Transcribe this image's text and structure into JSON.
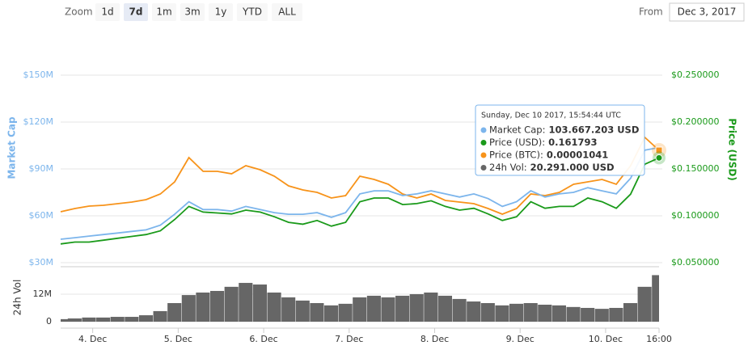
{
  "chart_data": {
    "type": "line",
    "toolbar": {
      "zoom_label": "Zoom",
      "buttons": [
        "1d",
        "7d",
        "1m",
        "3m",
        "1y",
        "YTD",
        "ALL"
      ],
      "selected": 1,
      "from_label": "From",
      "from_value": "Dec 3, 2017"
    },
    "ylabel": "Market Cap",
    "y2label": "Price (USD)",
    "vol_label": "24h Vol",
    "x": [
      0,
      4,
      8,
      12,
      16,
      20,
      24,
      28,
      32,
      36,
      40,
      44,
      48,
      52,
      56,
      60,
      64,
      68,
      72,
      76,
      80,
      84,
      88,
      92,
      96,
      100,
      104,
      108,
      112,
      116,
      120,
      124,
      128,
      132,
      136,
      140,
      144,
      148,
      152,
      156,
      160,
      164,
      168
    ],
    "xlim": [
      0,
      168
    ],
    "xticks": [
      {
        "value": 9,
        "label": "4. Dec"
      },
      {
        "value": 33,
        "label": "5. Dec"
      },
      {
        "value": 57,
        "label": "6. Dec"
      },
      {
        "value": 81,
        "label": "7. Dec"
      },
      {
        "value": 105,
        "label": "8. Dec"
      },
      {
        "value": 129,
        "label": "9. Dec"
      },
      {
        "value": 153,
        "label": "10. Dec"
      },
      {
        "value": 168,
        "label": "16:00"
      }
    ],
    "ylim": [
      30,
      177.4
    ],
    "yticks": [
      {
        "value": 30,
        "label": "$30M"
      },
      {
        "value": 60,
        "label": "$60M"
      },
      {
        "value": 90,
        "label": "$90M"
      },
      {
        "value": 120,
        "label": "$120M"
      },
      {
        "value": 150,
        "label": "$150M"
      }
    ],
    "y2lim": [
      0.05,
      0.2957
    ],
    "y2ticks": [
      {
        "value": 0.05,
        "label": "$0.050000"
      },
      {
        "value": 0.1,
        "label": "$0.100000"
      },
      {
        "value": 0.15,
        "label": "$0.150000"
      },
      {
        "value": 0.2,
        "label": "$0.200000"
      },
      {
        "value": 0.25,
        "label": "$0.250000"
      }
    ],
    "y3lim": [
      6.24e-06,
      1.479e-05
    ],
    "vol_ylim": [
      0,
      22.2
    ],
    "vol_yticks": [
      0,
      {
        "value": 12,
        "label": "12M"
      }
    ],
    "series": [
      {
        "color": "#7cb5ec",
        "axis": "y",
        "values": [
          45,
          46,
          47,
          48,
          49,
          50,
          51,
          54,
          61,
          69,
          64,
          64,
          63,
          66,
          64,
          62,
          61,
          61,
          62,
          59,
          62,
          74,
          76,
          76,
          73,
          74,
          76,
          74,
          72,
          74,
          71,
          66,
          69,
          76,
          72,
          74,
          75,
          78,
          76,
          74,
          84,
          102,
          103.67
        ]
      },
      {
        "color": "#1a9a1a",
        "axis": "y2",
        "values": [
          0.07,
          0.072,
          0.072,
          0.074,
          0.076,
          0.078,
          0.08,
          0.084,
          0.096,
          0.11,
          0.104,
          0.103,
          0.102,
          0.106,
          0.104,
          0.099,
          0.093,
          0.091,
          0.095,
          0.089,
          0.093,
          0.115,
          0.119,
          0.119,
          0.112,
          0.113,
          0.116,
          0.11,
          0.106,
          0.108,
          0.102,
          0.095,
          0.099,
          0.115,
          0.108,
          0.11,
          0.11,
          0.119,
          0.115,
          0.108,
          0.123,
          0.155,
          0.161793
        ]
      },
      {
        "color": "#f7931a",
        "axis": "y3",
        "values": [
          8.13e-06,
          8.25e-06,
          8.34e-06,
          8.37e-06,
          8.43e-06,
          8.49e-06,
          8.58e-06,
          8.79e-06,
          9.24e-06,
          1.014e-05,
          9.63e-06,
          9.63e-06,
          9.54e-06,
          9.84e-06,
          9.69e-06,
          9.45e-06,
          9.09e-06,
          8.94e-06,
          8.85e-06,
          8.64e-06,
          8.73e-06,
          9.45e-06,
          9.33e-06,
          9.15e-06,
          8.79e-06,
          8.64e-06,
          8.79e-06,
          8.55e-06,
          8.49e-06,
          8.43e-06,
          8.25e-06,
          8.04e-06,
          8.25e-06,
          8.79e-06,
          8.73e-06,
          8.85e-06,
          9.15e-06,
          9.24e-06,
          9.33e-06,
          9.15e-06,
          9.84e-06,
          1.089e-05,
          1.041e-05
        ]
      },
      {
        "color": "#666666",
        "axis": "vol",
        "values": [
          1.1,
          1.4,
          1.8,
          1.8,
          2.1,
          2.1,
          2.8,
          4.6,
          8.1,
          11.6,
          12.7,
          13.4,
          15.2,
          16.9,
          16.2,
          12.7,
          10.6,
          9.2,
          8.1,
          7.1,
          7.8,
          10.6,
          11.3,
          10.6,
          11.3,
          12.0,
          12.7,
          11.3,
          9.9,
          8.8,
          8.1,
          7.1,
          7.8,
          8.1,
          7.4,
          7.1,
          6.4,
          6.0,
          5.6,
          6.0,
          8.1,
          15.2,
          20.291
        ]
      }
    ],
    "tooltip": {
      "date": "Sunday, Dec 10 2017, 15:54:44 UTC",
      "rows": [
        {
          "label": "Market Cap:",
          "value": "103.667.203 USD",
          "color": "#7cb5ec"
        },
        {
          "label": "Price (USD):",
          "value": "0.161793",
          "color": "#1a9a1a"
        },
        {
          "label": "Price (BTC):",
          "value": "0.00001041",
          "color": "#f7931a"
        },
        {
          "label": "24h Vol:",
          "value": "20.291.000 USD",
          "color": "#666666"
        }
      ]
    }
  }
}
